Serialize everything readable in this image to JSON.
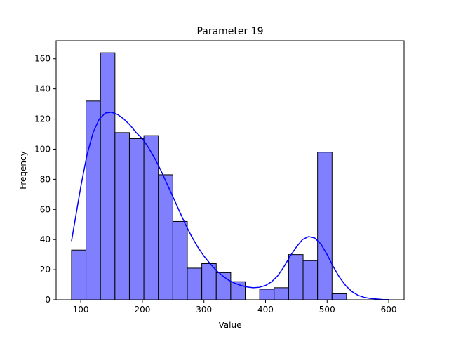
{
  "chart_data": {
    "type": "bar",
    "subtype": "histogram_with_kde",
    "title": "Parameter 19",
    "xlabel": "Value",
    "ylabel": "Freqency",
    "xlim": [
      60,
      625
    ],
    "ylim": [
      0,
      172
    ],
    "xticks": [
      100,
      200,
      300,
      400,
      500,
      600
    ],
    "yticks": [
      0,
      20,
      40,
      60,
      80,
      100,
      120,
      140,
      160
    ],
    "grid": false,
    "bar_color": "#8080ff",
    "bar_edge_color": "#000000",
    "kde_color": "#0000ff",
    "bins": [
      {
        "start": 85,
        "end": 108.5,
        "count": 33
      },
      {
        "start": 108.5,
        "end": 132,
        "count": 132
      },
      {
        "start": 132,
        "end": 155.5,
        "count": 164
      },
      {
        "start": 155.5,
        "end": 179,
        "count": 111
      },
      {
        "start": 179,
        "end": 202.5,
        "count": 107
      },
      {
        "start": 202.5,
        "end": 226,
        "count": 109
      },
      {
        "start": 226,
        "end": 249.5,
        "count": 83
      },
      {
        "start": 249.5,
        "end": 273,
        "count": 52
      },
      {
        "start": 273,
        "end": 296.5,
        "count": 21
      },
      {
        "start": 296.5,
        "end": 320,
        "count": 24
      },
      {
        "start": 320,
        "end": 343.5,
        "count": 18
      },
      {
        "start": 343.5,
        "end": 367,
        "count": 12
      },
      {
        "start": 367,
        "end": 390.5,
        "count": 0
      },
      {
        "start": 390.5,
        "end": 414,
        "count": 7
      },
      {
        "start": 414,
        "end": 437.5,
        "count": 8
      },
      {
        "start": 437.5,
        "end": 461,
        "count": 30
      },
      {
        "start": 461,
        "end": 484.5,
        "count": 26
      },
      {
        "start": 484.5,
        "end": 508,
        "count": 98
      },
      {
        "start": 508,
        "end": 531.5,
        "count": 4
      }
    ],
    "kde": {
      "x": [
        85,
        100,
        110,
        120,
        130,
        140,
        150,
        160,
        170,
        180,
        190,
        200,
        210,
        220,
        230,
        240,
        250,
        260,
        270,
        280,
        290,
        300,
        310,
        320,
        330,
        340,
        350,
        360,
        370,
        380,
        390,
        400,
        410,
        420,
        430,
        440,
        450,
        460,
        470,
        480,
        490,
        500,
        510,
        520,
        530,
        540,
        550,
        560,
        570,
        580,
        590,
        600
      ],
      "y": [
        39,
        75,
        96,
        111,
        120,
        124,
        124.5,
        123,
        120,
        116,
        111,
        107,
        101,
        94,
        86,
        77,
        68,
        59,
        50,
        42,
        35,
        29,
        24,
        19.5,
        16,
        13,
        11,
        9.5,
        8.5,
        8,
        8.3,
        9.5,
        12,
        16,
        22,
        29,
        35,
        40,
        42,
        41,
        37,
        30,
        22,
        15,
        9.5,
        5.5,
        3,
        1.6,
        0.9,
        0.5,
        0.2,
        0.1
      ]
    }
  }
}
